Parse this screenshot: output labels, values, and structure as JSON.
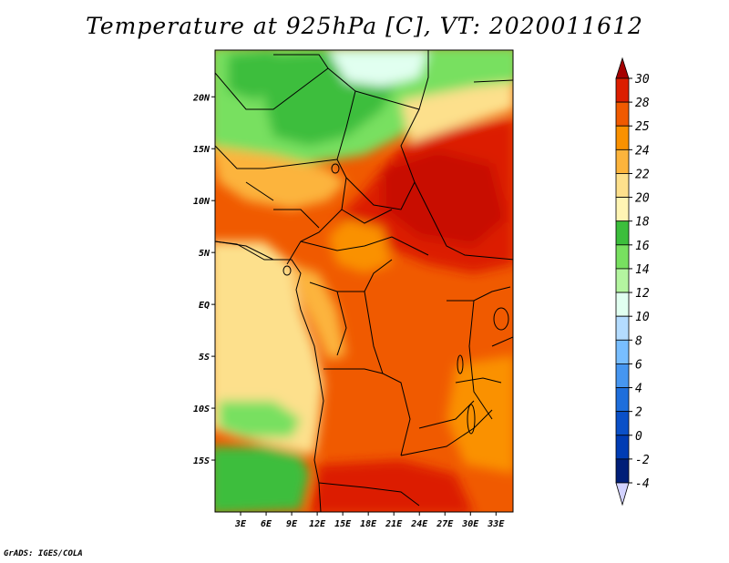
{
  "title": "Temperature at 925hPa [C], VT: 2020011612",
  "credit": "GrADS: IGES/COLA",
  "lon_ticks": [
    "3E",
    "6E",
    "9E",
    "12E",
    "15E",
    "18E",
    "21E",
    "24E",
    "27E",
    "30E",
    "33E"
  ],
  "lat_ticks": [
    "20N",
    "15N",
    "10N",
    "5N",
    "EQ",
    "5S",
    "10S",
    "15S"
  ],
  "colorbar": {
    "labels": [
      "30",
      "28",
      "25",
      "24",
      "22",
      "20",
      "18",
      "16",
      "14",
      "12",
      "10",
      "8",
      "6",
      "4",
      "2",
      "0",
      "-2",
      "-4"
    ],
    "colors": [
      "#a50000",
      "#dc1e00",
      "#f05a00",
      "#fa9100",
      "#fcb43c",
      "#fde08c",
      "#fff5b4",
      "#3cbe3c",
      "#78e060",
      "#b4f5a0",
      "#e1fff0",
      "#b4dcff",
      "#78beff",
      "#4696f0",
      "#1e6edc",
      "#0a50c8",
      "#003cb4",
      "#001e78",
      "#000064",
      "#d2d2ff"
    ]
  },
  "map": {
    "lon_range": [
      0,
      35
    ],
    "lat_range": [
      -20,
      24.5
    ]
  }
}
